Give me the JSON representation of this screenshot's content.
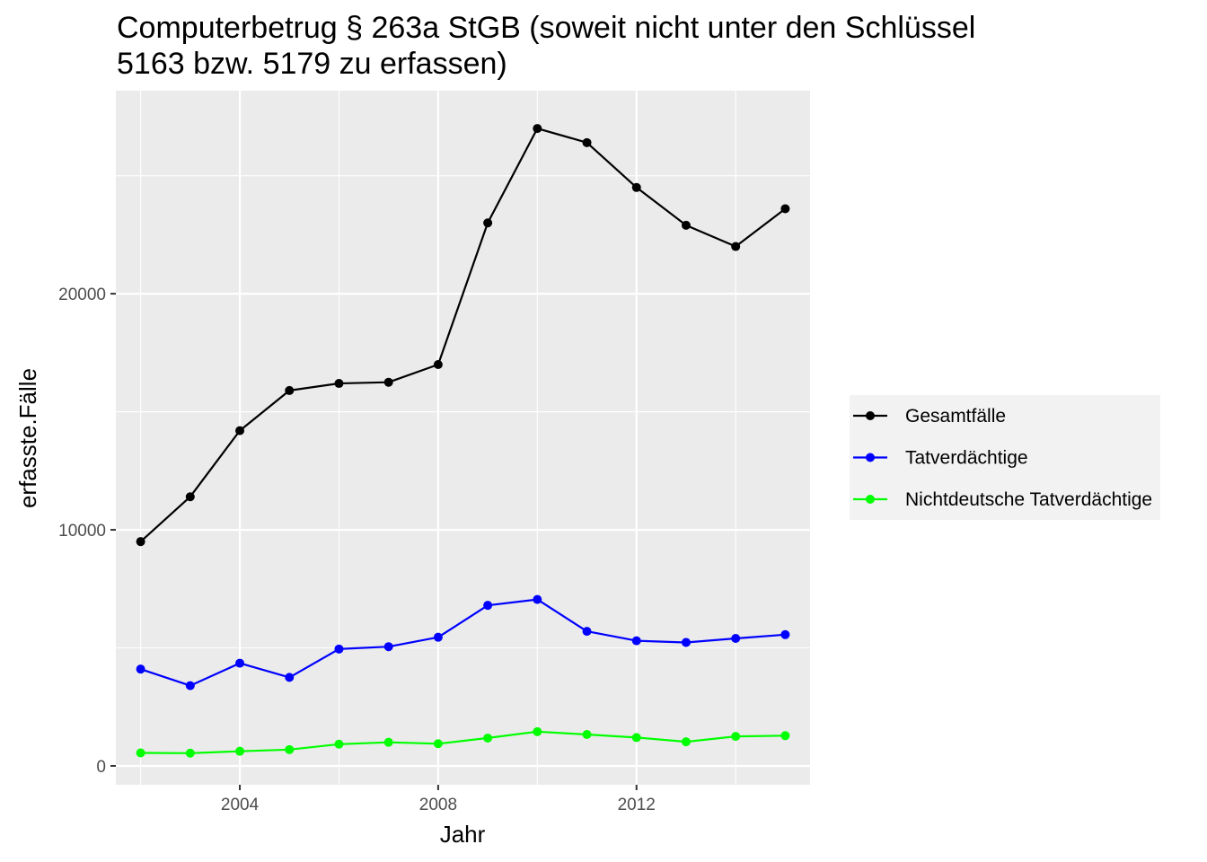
{
  "chart_data": {
    "type": "line",
    "title_lines": [
      "Computerbetrug § 263a StGB (soweit nicht unter den Schlüssel",
      "5163 bzw. 5179 zu erfassen)"
    ],
    "xlabel": "Jahr",
    "ylabel": "erfasste.Fälle",
    "x": [
      2002,
      2003,
      2004,
      2005,
      2006,
      2007,
      2008,
      2009,
      2010,
      2011,
      2012,
      2013,
      2014,
      2015
    ],
    "xlim": [
      2001.5,
      2015.5
    ],
    "ylim": [
      -800,
      28600
    ],
    "x_ticks": [
      2004,
      2008,
      2012
    ],
    "x_tick_labels": [
      "2004",
      "2008",
      "2012"
    ],
    "y_ticks": [
      0,
      10000,
      20000
    ],
    "y_tick_labels": [
      "0",
      "10000",
      "20000"
    ],
    "grid": true,
    "legend_position": "right",
    "series": [
      {
        "name": "Gesamtfälle",
        "color": "#000000",
        "values": [
          9500,
          11400,
          14200,
          15900,
          16200,
          16250,
          17000,
          23000,
          27000,
          26400,
          24500,
          22900,
          22000,
          23600
        ]
      },
      {
        "name": "Tatverdächtige",
        "color": "#0000ff",
        "values": [
          4100,
          3400,
          4350,
          3750,
          4950,
          5050,
          5450,
          6800,
          7050,
          5700,
          5300,
          5230,
          5400,
          5560
        ]
      },
      {
        "name": "Nichtdeutsche Tatverdächtige",
        "color": "#00ff00",
        "values": [
          550,
          540,
          620,
          690,
          920,
          1000,
          940,
          1180,
          1450,
          1330,
          1200,
          1020,
          1250,
          1280
        ]
      }
    ]
  }
}
